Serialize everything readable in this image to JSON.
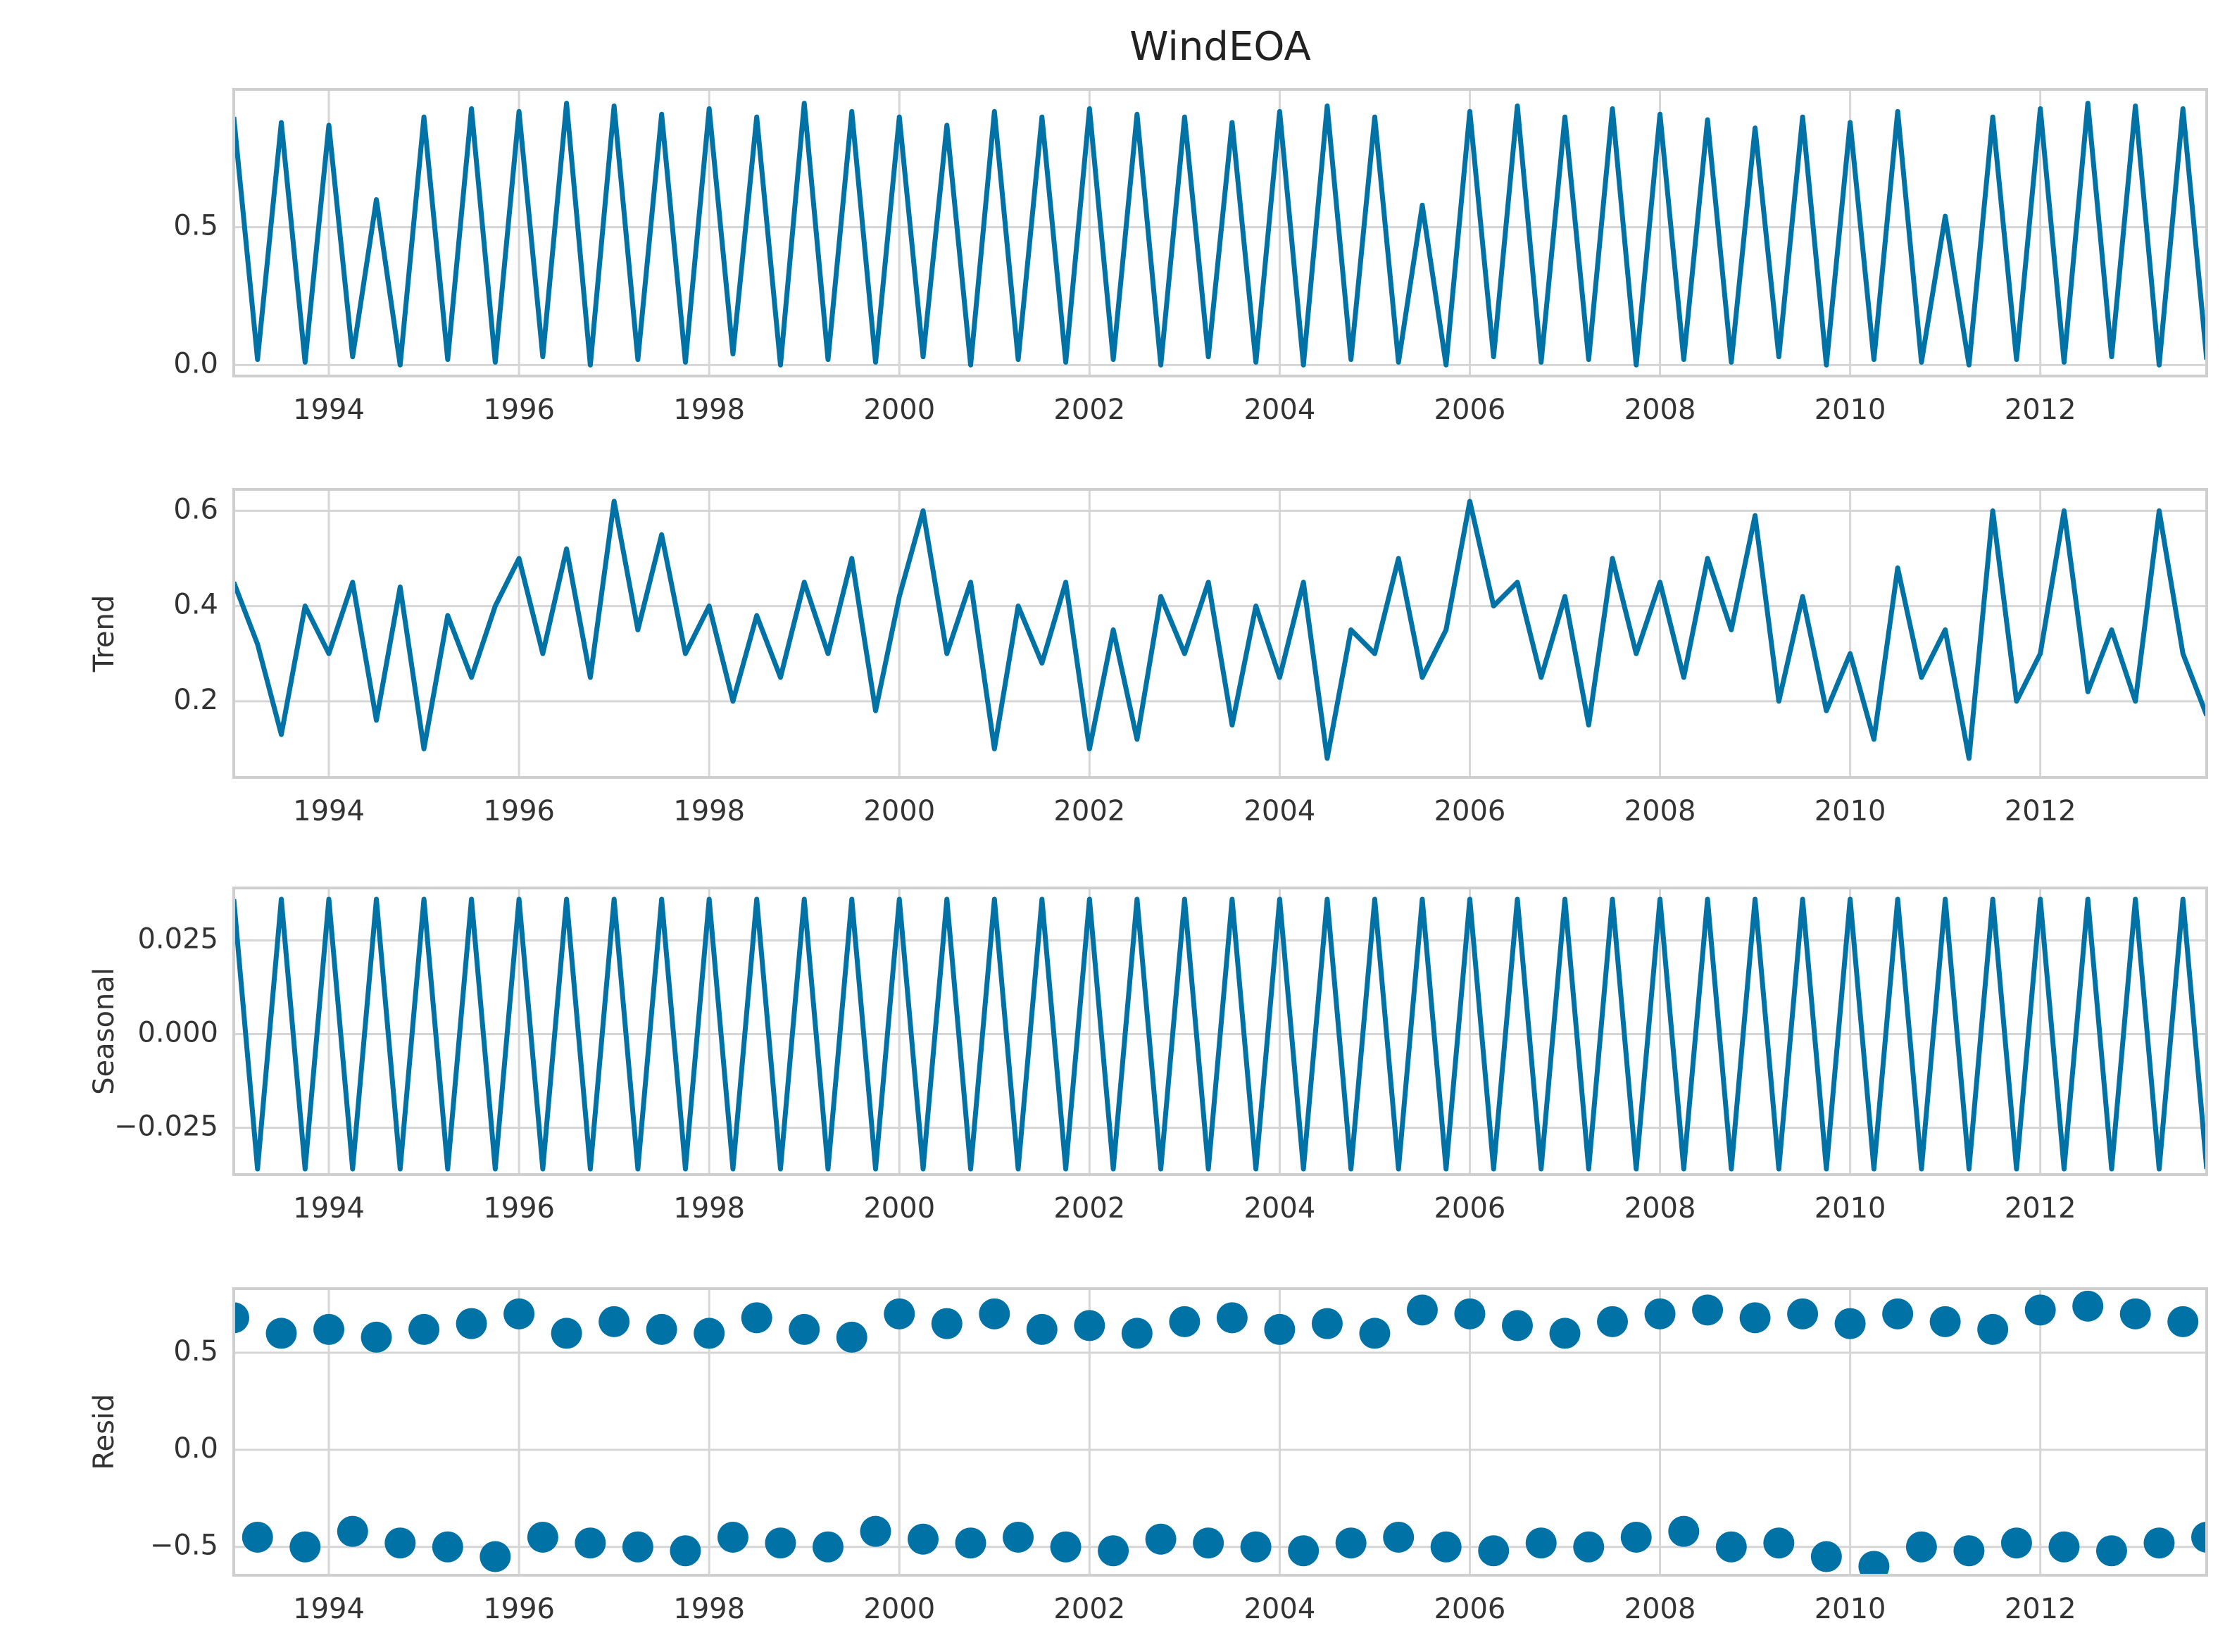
{
  "chart_data": [
    {
      "type": "line",
      "title": "WindEOA",
      "color": "#0072a5",
      "grid": true,
      "x": [
        1993,
        1993.25,
        1993.5,
        1993.75,
        1994,
        1994.25,
        1994.5,
        1994.75,
        1995,
        1995.25,
        1995.5,
        1995.75,
        1996,
        1996.25,
        1996.5,
        1996.75,
        1997,
        1997.25,
        1997.5,
        1997.75,
        1998,
        1998.25,
        1998.5,
        1998.75,
        1999,
        1999.25,
        1999.5,
        1999.75,
        2000,
        2000.25,
        2000.5,
        2000.75,
        2001,
        2001.25,
        2001.5,
        2001.75,
        2002,
        2002.25,
        2002.5,
        2002.75,
        2003,
        2003.25,
        2003.5,
        2003.75,
        2004,
        2004.25,
        2004.5,
        2004.75,
        2005,
        2005.25,
        2005.5,
        2005.75,
        2006,
        2006.25,
        2006.5,
        2006.75,
        2007,
        2007.25,
        2007.5,
        2007.75,
        2008,
        2008.25,
        2008.5,
        2008.75,
        2009,
        2009.25,
        2009.5,
        2009.75,
        2010,
        2010.25,
        2010.5,
        2010.75,
        2011,
        2011.25,
        2011.5,
        2011.75,
        2012,
        2012.25,
        2012.5,
        2012.75,
        2013,
        2013.25,
        2013.5,
        2013.75
      ],
      "values": [
        0.9,
        0.02,
        0.88,
        0.01,
        0.87,
        0.03,
        0.6,
        0.0,
        0.9,
        0.02,
        0.93,
        0.01,
        0.92,
        0.03,
        0.95,
        0.0,
        0.94,
        0.02,
        0.91,
        0.01,
        0.93,
        0.04,
        0.9,
        0.0,
        0.95,
        0.02,
        0.92,
        0.01,
        0.9,
        0.03,
        0.87,
        0.0,
        0.92,
        0.02,
        0.9,
        0.01,
        0.93,
        0.02,
        0.91,
        0.0,
        0.9,
        0.03,
        0.88,
        0.01,
        0.92,
        0.0,
        0.94,
        0.02,
        0.9,
        0.01,
        0.58,
        0.0,
        0.92,
        0.03,
        0.94,
        0.01,
        0.9,
        0.02,
        0.93,
        0.0,
        0.91,
        0.02,
        0.89,
        0.01,
        0.86,
        0.03,
        0.9,
        0.0,
        0.88,
        0.02,
        0.92,
        0.01,
        0.54,
        0.0,
        0.9,
        0.02,
        0.93,
        0.01,
        0.95,
        0.03,
        0.94,
        0.0,
        0.93,
        0.02
      ],
      "xlim": [
        1993,
        2013.75
      ],
      "xticks": [
        1994,
        1996,
        1998,
        2000,
        2002,
        2004,
        2006,
        2008,
        2010,
        2012
      ],
      "ylim": [
        -0.04,
        1.0
      ],
      "yticks": [
        {
          "value": 0,
          "label": "0.0"
        },
        0.5
      ]
    },
    {
      "type": "line",
      "ylabel": "Trend",
      "color": "#0072a5",
      "grid": true,
      "x": [
        1993,
        1993.25,
        1993.5,
        1993.75,
        1994,
        1994.25,
        1994.5,
        1994.75,
        1995,
        1995.25,
        1995.5,
        1995.75,
        1996,
        1996.25,
        1996.5,
        1996.75,
        1997,
        1997.25,
        1997.5,
        1997.75,
        1998,
        1998.25,
        1998.5,
        1998.75,
        1999,
        1999.25,
        1999.5,
        1999.75,
        2000,
        2000.25,
        2000.5,
        2000.75,
        2001,
        2001.25,
        2001.5,
        2001.75,
        2002,
        2002.25,
        2002.5,
        2002.75,
        2003,
        2003.25,
        2003.5,
        2003.75,
        2004,
        2004.25,
        2004.5,
        2004.75,
        2005,
        2005.25,
        2005.5,
        2005.75,
        2006,
        2006.25,
        2006.5,
        2006.75,
        2007,
        2007.25,
        2007.5,
        2007.75,
        2008,
        2008.25,
        2008.5,
        2008.75,
        2009,
        2009.25,
        2009.5,
        2009.75,
        2010,
        2010.25,
        2010.5,
        2010.75,
        2011,
        2011.25,
        2011.5,
        2011.75,
        2012,
        2012.25,
        2012.5,
        2012.75,
        2013,
        2013.25,
        2013.5,
        2013.75
      ],
      "values": [
        0.45,
        0.32,
        0.13,
        0.4,
        0.3,
        0.45,
        0.16,
        0.44,
        0.1,
        0.38,
        0.25,
        0.4,
        0.5,
        0.3,
        0.52,
        0.25,
        0.62,
        0.35,
        0.55,
        0.3,
        0.4,
        0.2,
        0.38,
        0.25,
        0.45,
        0.3,
        0.5,
        0.18,
        0.42,
        0.6,
        0.3,
        0.45,
        0.1,
        0.4,
        0.28,
        0.45,
        0.1,
        0.35,
        0.12,
        0.42,
        0.3,
        0.45,
        0.15,
        0.4,
        0.25,
        0.45,
        0.08,
        0.35,
        0.3,
        0.5,
        0.25,
        0.35,
        0.62,
        0.4,
        0.45,
        0.25,
        0.42,
        0.15,
        0.5,
        0.3,
        0.45,
        0.25,
        0.5,
        0.35,
        0.59,
        0.2,
        0.42,
        0.18,
        0.3,
        0.12,
        0.48,
        0.25,
        0.35,
        0.08,
        0.6,
        0.2,
        0.3,
        0.6,
        0.22,
        0.35,
        0.2,
        0.6,
        0.3,
        0.17
      ],
      "xlim": [
        1993,
        2013.75
      ],
      "xticks": [
        1994,
        1996,
        1998,
        2000,
        2002,
        2004,
        2006,
        2008,
        2010,
        2012
      ],
      "ylim": [
        0.04,
        0.645
      ],
      "yticks": [
        0.2,
        0.4,
        0.6
      ]
    },
    {
      "type": "line",
      "ylabel": "Seasonal",
      "color": "#0072a5",
      "grid": true,
      "x": [
        1993,
        1993.25,
        1993.5,
        1993.75,
        1994,
        1994.25,
        1994.5,
        1994.75,
        1995,
        1995.25,
        1995.5,
        1995.75,
        1996,
        1996.25,
        1996.5,
        1996.75,
        1997,
        1997.25,
        1997.5,
        1997.75,
        1998,
        1998.25,
        1998.5,
        1998.75,
        1999,
        1999.25,
        1999.5,
        1999.75,
        2000,
        2000.25,
        2000.5,
        2000.75,
        2001,
        2001.25,
        2001.5,
        2001.75,
        2002,
        2002.25,
        2002.5,
        2002.75,
        2003,
        2003.25,
        2003.5,
        2003.75,
        2004,
        2004.25,
        2004.5,
        2004.75,
        2005,
        2005.25,
        2005.5,
        2005.75,
        2006,
        2006.25,
        2006.5,
        2006.75,
        2007,
        2007.25,
        2007.5,
        2007.75,
        2008,
        2008.25,
        2008.5,
        2008.75,
        2009,
        2009.25,
        2009.5,
        2009.75,
        2010,
        2010.25,
        2010.5,
        2010.75,
        2011,
        2011.25,
        2011.5,
        2011.75,
        2012,
        2012.25,
        2012.5,
        2012.75,
        2013,
        2013.25,
        2013.5,
        2013.75
      ],
      "values": [
        0.036,
        -0.036,
        0.036,
        -0.036,
        0.036,
        -0.036,
        0.036,
        -0.036,
        0.036,
        -0.036,
        0.036,
        -0.036,
        0.036,
        -0.036,
        0.036,
        -0.036,
        0.036,
        -0.036,
        0.036,
        -0.036,
        0.036,
        -0.036,
        0.036,
        -0.036,
        0.036,
        -0.036,
        0.036,
        -0.036,
        0.036,
        -0.036,
        0.036,
        -0.036,
        0.036,
        -0.036,
        0.036,
        -0.036,
        0.036,
        -0.036,
        0.036,
        -0.036,
        0.036,
        -0.036,
        0.036,
        -0.036,
        0.036,
        -0.036,
        0.036,
        -0.036,
        0.036,
        -0.036,
        0.036,
        -0.036,
        0.036,
        -0.036,
        0.036,
        -0.036,
        0.036,
        -0.036,
        0.036,
        -0.036,
        0.036,
        -0.036,
        0.036,
        -0.036,
        0.036,
        -0.036,
        0.036,
        -0.036,
        0.036,
        -0.036,
        0.036,
        -0.036,
        0.036,
        -0.036,
        0.036,
        -0.036,
        0.036,
        -0.036,
        0.036,
        -0.036,
        0.036,
        -0.036,
        0.036,
        -0.036
      ],
      "xlim": [
        1993,
        2013.75
      ],
      "xticks": [
        1994,
        1996,
        1998,
        2000,
        2002,
        2004,
        2006,
        2008,
        2010,
        2012
      ],
      "ylim": [
        -0.0375,
        0.039
      ],
      "yticks": [
        {
          "value": -0.025,
          "label": "−0.025"
        },
        {
          "value": 0,
          "label": "0.000"
        },
        0.025
      ]
    },
    {
      "type": "scatter",
      "ylabel": "Resid",
      "color": "#0072a5",
      "grid": true,
      "x": [
        1993,
        1993.25,
        1993.5,
        1993.75,
        1994,
        1994.25,
        1994.5,
        1994.75,
        1995,
        1995.25,
        1995.5,
        1995.75,
        1996,
        1996.25,
        1996.5,
        1996.75,
        1997,
        1997.25,
        1997.5,
        1997.75,
        1998,
        1998.25,
        1998.5,
        1998.75,
        1999,
        1999.25,
        1999.5,
        1999.75,
        2000,
        2000.25,
        2000.5,
        2000.75,
        2001,
        2001.25,
        2001.5,
        2001.75,
        2002,
        2002.25,
        2002.5,
        2002.75,
        2003,
        2003.25,
        2003.5,
        2003.75,
        2004,
        2004.25,
        2004.5,
        2004.75,
        2005,
        2005.25,
        2005.5,
        2005.75,
        2006,
        2006.25,
        2006.5,
        2006.75,
        2007,
        2007.25,
        2007.5,
        2007.75,
        2008,
        2008.25,
        2008.5,
        2008.75,
        2009,
        2009.25,
        2009.5,
        2009.75,
        2010,
        2010.25,
        2010.5,
        2010.75,
        2011,
        2011.25,
        2011.5,
        2011.75,
        2012,
        2012.25,
        2012.5,
        2012.75,
        2013,
        2013.25,
        2013.5,
        2013.75
      ],
      "values": [
        0.68,
        -0.45,
        0.6,
        -0.5,
        0.62,
        -0.42,
        0.58,
        -0.48,
        0.62,
        -0.5,
        0.65,
        -0.55,
        0.7,
        -0.45,
        0.6,
        -0.48,
        0.66,
        -0.5,
        0.62,
        -0.52,
        0.6,
        -0.45,
        0.68,
        -0.48,
        0.62,
        -0.5,
        0.58,
        -0.42,
        0.7,
        -0.46,
        0.65,
        -0.48,
        0.7,
        -0.45,
        0.62,
        -0.5,
        0.64,
        -0.52,
        0.6,
        -0.46,
        0.66,
        -0.48,
        0.68,
        -0.5,
        0.62,
        -0.52,
        0.65,
        -0.48,
        0.6,
        -0.45,
        0.72,
        -0.5,
        0.7,
        -0.52,
        0.64,
        -0.48,
        0.6,
        -0.5,
        0.66,
        -0.45,
        0.7,
        -0.42,
        0.72,
        -0.5,
        0.68,
        -0.48,
        0.7,
        -0.55,
        0.65,
        -0.6,
        0.7,
        -0.5,
        0.66,
        -0.52,
        0.62,
        -0.48,
        0.72,
        -0.5,
        0.74,
        -0.52,
        0.7,
        -0.48,
        0.66,
        -0.45
      ],
      "xlim": [
        1993,
        2013.75
      ],
      "xticks": [
        1994,
        1996,
        1998,
        2000,
        2002,
        2004,
        2006,
        2008,
        2010,
        2012
      ],
      "ylim": [
        -0.646,
        0.83
      ],
      "yticks": [
        {
          "value": -0.5,
          "label": "−0.5"
        },
        {
          "value": 0,
          "label": "0.0"
        },
        0.5
      ]
    }
  ]
}
